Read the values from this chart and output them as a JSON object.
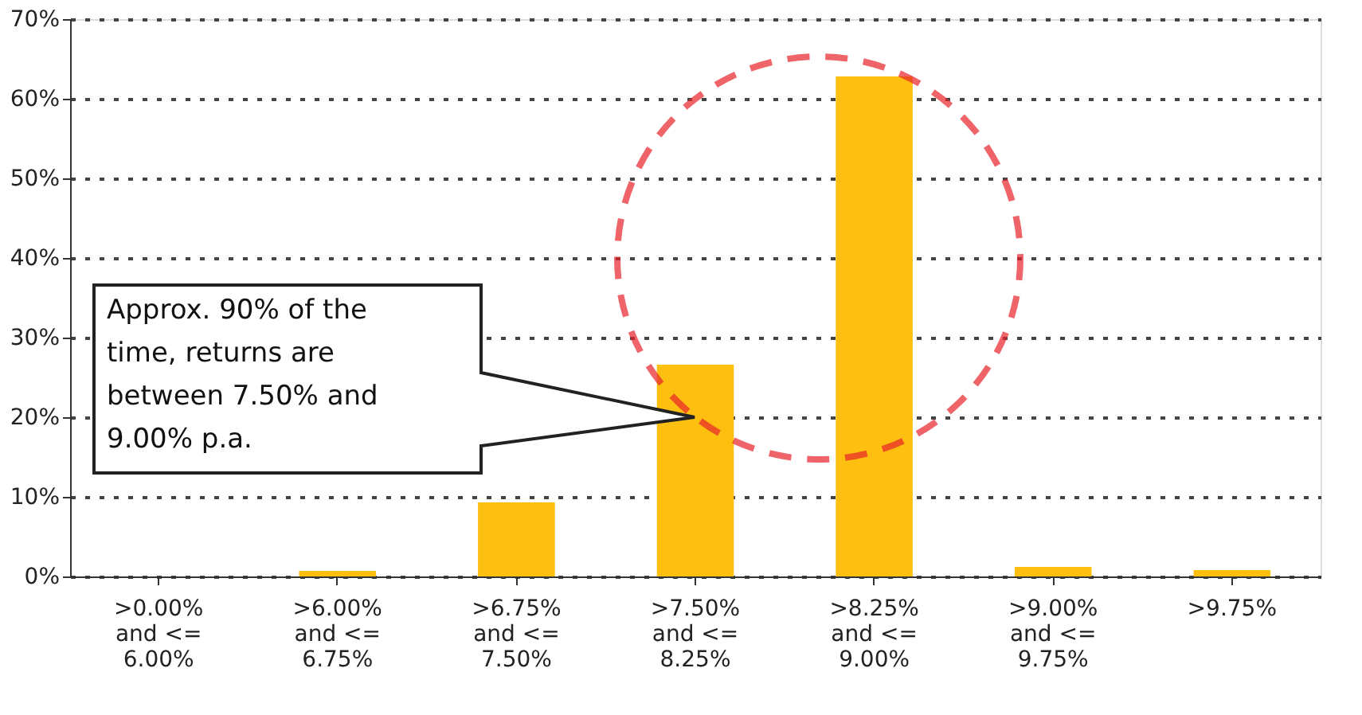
{
  "chart_data": {
    "type": "bar",
    "categories": [
      ">0.00%\nand <=\n6.00%",
      ">6.00%\nand <=\n6.75%",
      ">6.75%\nand <=\n7.50%",
      ">7.50%\nand <=\n8.25%",
      ">8.25%\nand <=\n9.00%",
      ">9.00%\nand <=\n9.75%",
      ">9.75%"
    ],
    "values": [
      0,
      0.7,
      9.3,
      26.6,
      62.8,
      1.2,
      0.8
    ],
    "color": "#fdc010",
    "ylim": [
      0,
      70
    ],
    "yticks": [
      {
        "value": 0,
        "label": "0%"
      },
      {
        "value": 10,
        "label": "10%"
      },
      {
        "value": 20,
        "label": "20%"
      },
      {
        "value": 30,
        "label": "30%"
      },
      {
        "value": 40,
        "label": "40%"
      },
      {
        "value": 50,
        "label": "50%"
      },
      {
        "value": 60,
        "label": "60%"
      },
      {
        "value": 70,
        "label": "70%"
      }
    ],
    "grid": "y",
    "annotations": [
      "Approx. 90% of the time, returns are between 7.50% and 9.00% p.a."
    ]
  }
}
